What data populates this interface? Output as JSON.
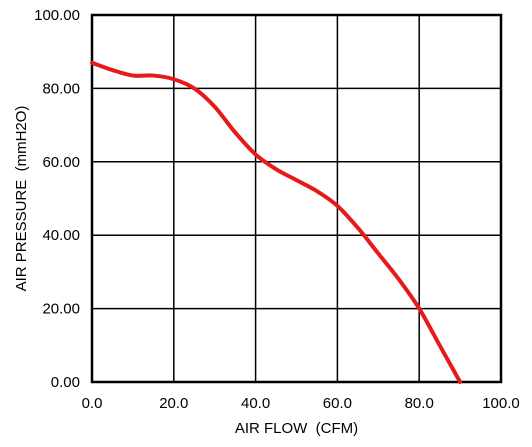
{
  "chart_data": {
    "type": "line",
    "title": "",
    "xlabel": "AIR FLOW  (CFM)",
    "ylabel": "AIR PRESSURE  (mmH2O)",
    "xlim": [
      0,
      100
    ],
    "ylim": [
      0,
      100
    ],
    "x_ticks": [
      0,
      20,
      40,
      60,
      80,
      100
    ],
    "y_ticks": [
      0,
      20,
      40,
      60,
      80,
      100
    ],
    "x_tick_labels": [
      "0.0",
      "20.0",
      "40.0",
      "60.0",
      "80.0",
      "100.0"
    ],
    "y_tick_labels": [
      "0.00",
      "20.00",
      "40.00",
      "60.00",
      "80.00",
      "100.00"
    ],
    "grid": true,
    "legend": "none",
    "series": [
      {
        "color": "#e8191a",
        "x": [
          0,
          5,
          10,
          15,
          20,
          25,
          30,
          35,
          40,
          45,
          50,
          55,
          60,
          65,
          70,
          75,
          80,
          85,
          90
        ],
        "y": [
          87,
          85,
          83.5,
          83.5,
          82.5,
          80,
          75,
          68,
          62,
          58,
          55,
          52,
          48,
          42,
          35,
          28,
          20,
          10,
          0
        ]
      }
    ]
  }
}
